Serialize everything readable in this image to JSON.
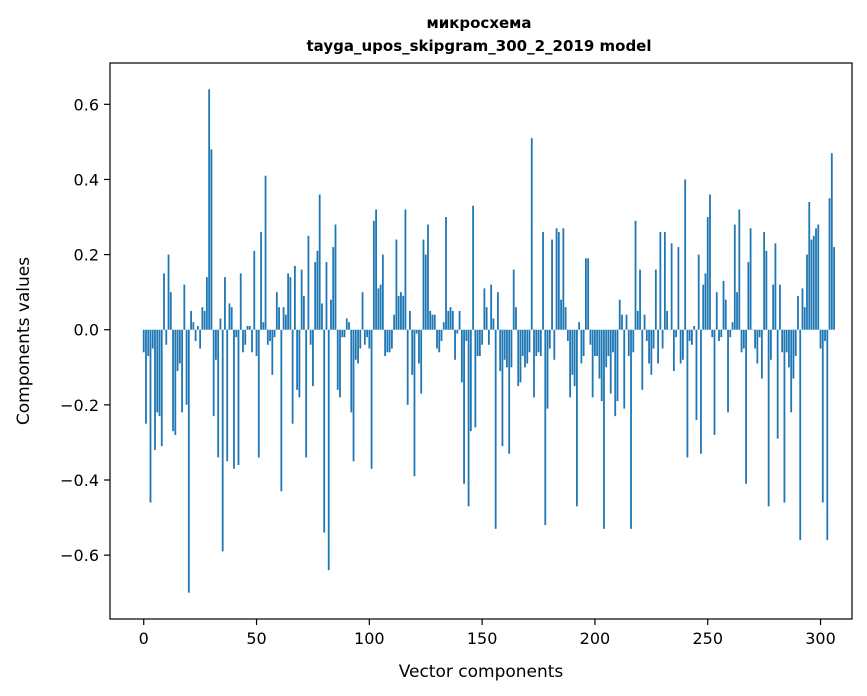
{
  "chart_data": {
    "type": "bar",
    "title_lines": [
      "микросхема",
      "tayga_upos_skipgram_300_2_2019 model"
    ],
    "xlabel": "Vector components",
    "ylabel": "Components values",
    "xlim": [
      -14.95,
      313.95
    ],
    "ylim": [
      -0.77,
      0.71
    ],
    "xticks": [
      0,
      50,
      100,
      150,
      200,
      250,
      300
    ],
    "xtick_labels": [
      "0",
      "50",
      "100",
      "150",
      "200",
      "250",
      "300"
    ],
    "yticks": [
      -0.6,
      -0.4,
      -0.2,
      0.0,
      0.2,
      0.4,
      0.6
    ],
    "ytick_labels": [
      "−0.6",
      "−0.4",
      "−0.2",
      "0.0",
      "0.2",
      "0.4",
      "0.6"
    ],
    "bar_color": "#1f77b4",
    "grid": false,
    "values": [
      -0.06,
      -0.25,
      -0.07,
      -0.46,
      -0.05,
      -0.32,
      -0.22,
      -0.23,
      -0.31,
      0.15,
      -0.04,
      0.2,
      0.1,
      -0.27,
      -0.28,
      -0.11,
      -0.09,
      -0.22,
      0.12,
      -0.2,
      -0.7,
      0.05,
      0.02,
      -0.03,
      0.01,
      -0.05,
      0.06,
      0.05,
      0.14,
      0.64,
      0.48,
      -0.23,
      -0.08,
      -0.34,
      0.03,
      -0.59,
      0.14,
      -0.35,
      0.07,
      0.06,
      -0.37,
      -0.02,
      -0.36,
      0.15,
      -0.06,
      -0.04,
      0.01,
      0.01,
      -0.06,
      0.21,
      -0.07,
      -0.34,
      0.26,
      0.02,
      0.41,
      -0.04,
      -0.03,
      -0.12,
      -0.02,
      0.1,
      0.06,
      -0.43,
      0.06,
      0.04,
      0.15,
      0.14,
      -0.25,
      0.17,
      -0.16,
      -0.18,
      0.16,
      0.09,
      -0.34,
      0.25,
      -0.04,
      -0.15,
      0.18,
      0.21,
      0.36,
      0.07,
      -0.54,
      0.18,
      -0.64,
      0.08,
      0.22,
      0.28,
      -0.16,
      -0.18,
      -0.02,
      -0.02,
      0.03,
      0.02,
      -0.22,
      -0.35,
      -0.08,
      -0.09,
      -0.05,
      0.1,
      -0.04,
      -0.02,
      -0.05,
      -0.37,
      0.29,
      0.32,
      0.11,
      0.12,
      0.2,
      -0.07,
      -0.06,
      -0.06,
      -0.05,
      0.04,
      0.24,
      0.09,
      0.1,
      0.09,
      0.32,
      -0.2,
      0.05,
      -0.12,
      -0.39,
      -0.01,
      -0.09,
      -0.17,
      0.24,
      0.2,
      0.28,
      0.05,
      0.04,
      0.04,
      -0.05,
      -0.06,
      -0.03,
      0.02,
      0.3,
      0.05,
      0.06,
      0.05,
      -0.08,
      -0.01,
      0.05,
      -0.14,
      -0.41,
      -0.03,
      -0.47,
      -0.27,
      0.33,
      -0.26,
      -0.07,
      -0.07,
      -0.04,
      0.11,
      0.06,
      -0.04,
      0.12,
      0.03,
      -0.53,
      0.1,
      -0.11,
      -0.31,
      -0.08,
      -0.1,
      -0.33,
      -0.1,
      0.16,
      0.06,
      -0.15,
      -0.14,
      -0.07,
      -0.1,
      -0.09,
      -0.06,
      0.51,
      -0.18,
      -0.07,
      -0.06,
      -0.07,
      0.26,
      -0.52,
      -0.21,
      -0.05,
      0.24,
      -0.08,
      0.27,
      0.26,
      0.08,
      0.27,
      0.06,
      -0.03,
      -0.18,
      -0.12,
      -0.15,
      -0.47,
      0.02,
      -0.09,
      -0.07,
      0.19,
      0.19,
      -0.04,
      -0.18,
      -0.07,
      -0.07,
      -0.13,
      -0.19,
      -0.53,
      -0.1,
      -0.07,
      -0.17,
      -0.06,
      -0.23,
      -0.19,
      0.08,
      0.04,
      -0.21,
      0.04,
      -0.07,
      -0.53,
      -0.06,
      0.29,
      0.05,
      0.16,
      -0.16,
      0.04,
      -0.03,
      -0.09,
      -0.12,
      -0.05,
      0.16,
      -0.09,
      0.26,
      -0.05,
      0.26,
      0.05,
      0.0,
      0.23,
      -0.11,
      -0.02,
      0.22,
      -0.09,
      -0.08,
      0.4,
      -0.34,
      -0.03,
      -0.04,
      0.01,
      -0.24,
      0.2,
      -0.33,
      0.12,
      0.15,
      0.3,
      0.36,
      -0.02,
      -0.28,
      0.1,
      -0.03,
      -0.02,
      0.13,
      0.08,
      -0.22,
      -0.02,
      0.02,
      0.28,
      0.1,
      0.32,
      -0.06,
      -0.05,
      -0.41,
      0.18,
      0.27,
      0.0,
      -0.05,
      -0.09,
      -0.02,
      -0.13,
      0.26,
      0.21,
      -0.47,
      -0.08,
      0.12,
      0.23,
      -0.29,
      0.12,
      -0.06,
      -0.46,
      -0.06,
      -0.1,
      -0.22,
      -0.13,
      -0.07,
      0.09,
      -0.56,
      0.11,
      0.06,
      0.2,
      0.34,
      0.24,
      0.25,
      0.27,
      0.28,
      -0.05,
      -0.46,
      -0.03,
      -0.56,
      0.35,
      0.47,
      0.22
    ]
  }
}
